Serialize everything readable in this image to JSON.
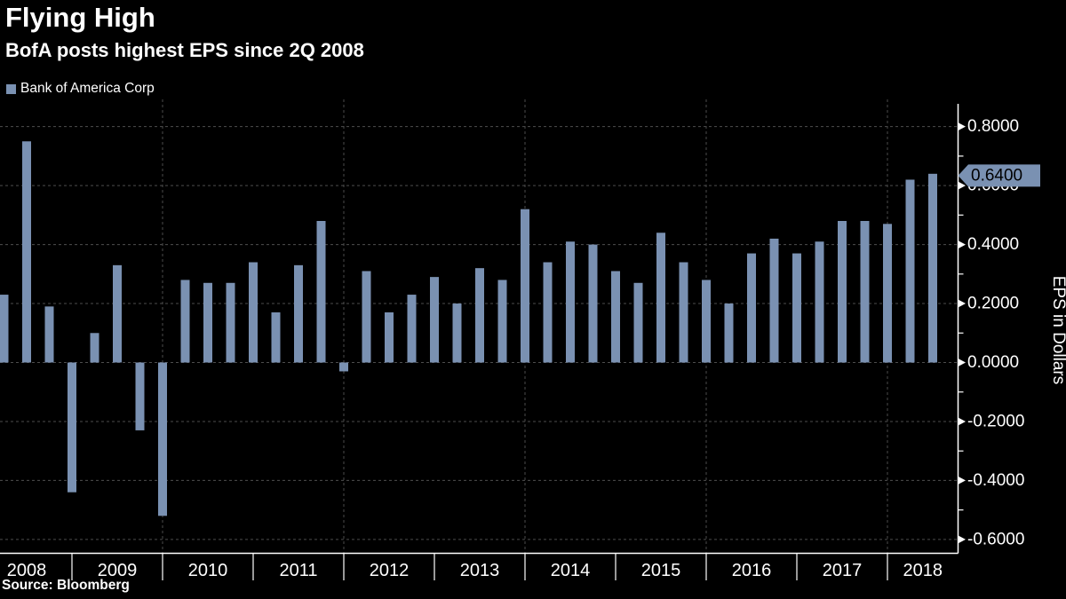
{
  "header": {
    "title": "Flying High",
    "subtitle": "BofA posts highest EPS since 2Q 2008"
  },
  "legend": {
    "label": "Bank of America Corp",
    "swatch": "legend-swatch-square"
  },
  "source": "Source: Bloomberg",
  "colors": {
    "background": "#000000",
    "bar": "#7a91b2",
    "grid": "#4d4d4d",
    "axis": "#ffffff",
    "text": "#ffffff",
    "badge_bg": "#7a91b2",
    "badge_text": "#000000"
  },
  "chart_data": {
    "type": "bar",
    "title": "Flying High",
    "subtitle": "BofA posts highest EPS since 2Q 2008",
    "series_name": "Bank of America Corp",
    "ylabel": "EPS in Dollars",
    "ylim": [
      -0.645,
      0.875
    ],
    "grid": true,
    "legend_position": "top-left",
    "y_major_ticks": [
      {
        "value": 0.8,
        "label": "0.8000"
      },
      {
        "value": 0.6,
        "label": "0.6000"
      },
      {
        "value": 0.4,
        "label": "0.4000"
      },
      {
        "value": 0.2,
        "label": "0.2000"
      },
      {
        "value": 0.0,
        "label": "0.0000"
      },
      {
        "value": -0.2,
        "label": "-0.2000"
      },
      {
        "value": -0.4,
        "label": "-0.4000"
      },
      {
        "value": -0.6,
        "label": "-0.6000"
      }
    ],
    "y_minor_ticks": [
      0.7,
      0.5,
      0.3,
      0.1,
      -0.1,
      -0.3,
      -0.5
    ],
    "years": [
      "2008",
      "2009",
      "2010",
      "2011",
      "2012",
      "2013",
      "2014",
      "2015",
      "2016",
      "2017",
      "2018"
    ],
    "quarters": [
      {
        "period": "1Q 2008",
        "value": 0.23
      },
      {
        "period": "2Q 2008",
        "value": 0.75
      },
      {
        "period": "3Q 2008",
        "value": 0.19
      },
      {
        "period": "4Q 2008",
        "value": -0.44
      },
      {
        "period": "1Q 2009",
        "value": 0.1
      },
      {
        "period": "2Q 2009",
        "value": 0.33
      },
      {
        "period": "3Q 2009",
        "value": -0.23
      },
      {
        "period": "4Q 2009",
        "value": -0.52
      },
      {
        "period": "1Q 2010",
        "value": 0.28
      },
      {
        "period": "2Q 2010",
        "value": 0.27
      },
      {
        "period": "3Q 2010",
        "value": 0.27
      },
      {
        "period": "4Q 2010",
        "value": 0.34
      },
      {
        "period": "1Q 2011",
        "value": 0.17
      },
      {
        "period": "2Q 2011",
        "value": 0.33
      },
      {
        "period": "3Q 2011",
        "value": 0.48
      },
      {
        "period": "4Q 2011",
        "value": -0.03
      },
      {
        "period": "1Q 2012",
        "value": 0.31
      },
      {
        "period": "2Q 2012",
        "value": 0.17
      },
      {
        "period": "3Q 2012",
        "value": 0.23
      },
      {
        "period": "4Q 2012",
        "value": 0.29
      },
      {
        "period": "1Q 2013",
        "value": 0.2
      },
      {
        "period": "2Q 2013",
        "value": 0.32
      },
      {
        "period": "3Q 2013",
        "value": 0.28
      },
      {
        "period": "4Q 2013",
        "value": 0.52
      },
      {
        "period": "1Q 2014",
        "value": 0.34
      },
      {
        "period": "2Q 2014",
        "value": 0.41
      },
      {
        "period": "3Q 2014",
        "value": 0.4
      },
      {
        "period": "4Q 2014",
        "value": 0.31
      },
      {
        "period": "1Q 2015",
        "value": 0.27
      },
      {
        "period": "2Q 2015",
        "value": 0.44
      },
      {
        "period": "3Q 2015",
        "value": 0.34
      },
      {
        "period": "4Q 2015",
        "value": 0.28
      },
      {
        "period": "1Q 2016",
        "value": 0.2
      },
      {
        "period": "2Q 2016",
        "value": 0.37
      },
      {
        "period": "3Q 2016",
        "value": 0.42
      },
      {
        "period": "4Q 2016",
        "value": 0.37
      },
      {
        "period": "1Q 2017",
        "value": 0.41
      },
      {
        "period": "2Q 2017",
        "value": 0.48
      },
      {
        "period": "3Q 2017",
        "value": 0.48
      },
      {
        "period": "4Q 2017",
        "value": 0.47
      },
      {
        "period": "1Q 2018",
        "value": 0.62
      },
      {
        "period": "2Q 2018",
        "value": 0.64
      }
    ],
    "last_value": {
      "value": 0.64,
      "label": "0.6400"
    }
  }
}
